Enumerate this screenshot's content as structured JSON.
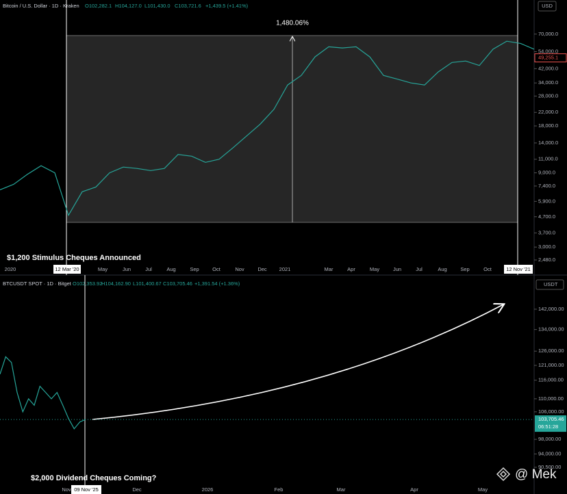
{
  "top": {
    "symbol": "Bitcoin / U.S. Dollar · 1D · Kraken",
    "open": "O102,282.1",
    "high": "H104,127.0",
    "low": "L101,430.0",
    "close": "C103,721.6",
    "change": "+1,439.5 (+1.41%)",
    "currency": "USD",
    "measure_label": "1,480.06%",
    "annotation": "$1,200 Stimulus Cheques Announced",
    "ylim": [
      2130,
      115900
    ],
    "price_ticks": [
      {
        "value": 70000,
        "label": "70,000.0"
      },
      {
        "value": 54000,
        "label": "54,000.0"
      },
      {
        "value": 42000,
        "label": "42,000.0"
      },
      {
        "value": 34000,
        "label": "34,000.0"
      },
      {
        "value": 28000,
        "label": "28,000.0"
      },
      {
        "value": 22000,
        "label": "22,000.0"
      },
      {
        "value": 18000,
        "label": "18,000.0"
      },
      {
        "value": 14000,
        "label": "14,000.0"
      },
      {
        "value": 11000,
        "label": "11,000.0"
      },
      {
        "value": 9000,
        "label": "9,000.0"
      },
      {
        "value": 7400,
        "label": "7,400.0"
      },
      {
        "value": 5900,
        "label": "5,900.0"
      },
      {
        "value": 4700,
        "label": "4,700.0"
      },
      {
        "value": 3700,
        "label": "3,700.0"
      },
      {
        "value": 3000,
        "label": "3,000.0"
      },
      {
        "value": 2480,
        "label": "2,480.0"
      }
    ],
    "last_price": {
      "value": 49255.1,
      "label": "49,255.1"
    },
    "time_labels": [
      "2020",
      "May",
      "Jun",
      "Jul",
      "Aug",
      "Sep",
      "Oct",
      "Nov",
      "Dec",
      "2021",
      "Mar",
      "Apr",
      "May",
      "Jun",
      "Jul",
      "Aug",
      "Sep",
      "Oct"
    ],
    "start_marker": "12 Mar '20",
    "end_marker": "12 Nov '21",
    "closes": [
      7000,
      7600,
      8800,
      10000,
      9000,
      4800,
      6800,
      7300,
      9000,
      9800,
      9600,
      9300,
      9600,
      11800,
      11500,
      10500,
      11000,
      13000,
      15500,
      18500,
      23000,
      33000,
      38000,
      50000,
      58000,
      57000,
      58000,
      50000,
      38000,
      36000,
      34000,
      33000,
      40000,
      46000,
      47000,
      44000,
      56000,
      63000,
      61000,
      56000
    ]
  },
  "bottom": {
    "symbol": "BTCUSDT SPOT · 1D · Bitget",
    "open": "O102,353.92",
    "high": "H104,162.90",
    "low": "L101,400.67",
    "close": "C103,705.46",
    "change": "+1,391.54 (+1.36%)",
    "currency": "USDT",
    "annotation": "$2,000 Dividend Cheques Coming?",
    "ylim": [
      88400,
      155600
    ],
    "price_ticks": [
      {
        "value": 142000,
        "label": "142,000.00"
      },
      {
        "value": 134000,
        "label": "134,000.00"
      },
      {
        "value": 126000,
        "label": "126,000.00"
      },
      {
        "value": 121000,
        "label": "121,000.00"
      },
      {
        "value": 116000,
        "label": "116,000.00"
      },
      {
        "value": 110000,
        "label": "110,000.00"
      },
      {
        "value": 106000,
        "label": "106,000.00"
      },
      {
        "value": 98000,
        "label": "98,000.00"
      },
      {
        "value": 94000,
        "label": "94,000.00"
      },
      {
        "value": 90500,
        "label": "90,500.00"
      }
    ],
    "last_price": {
      "value": 103705.46,
      "label": "103,705.46"
    },
    "countdown": "06:51:28",
    "time_labels": [
      "Nov",
      "Dec",
      "2026",
      "Feb",
      "Mar",
      "Apr",
      "May"
    ],
    "marker": "09 Nov '25",
    "closes": [
      118000,
      124000,
      122000,
      112000,
      106000,
      110000,
      108000,
      114000,
      112000,
      110000,
      112000,
      108000,
      104000,
      101000,
      103000,
      103700
    ]
  },
  "watermark": "@ Mek"
}
